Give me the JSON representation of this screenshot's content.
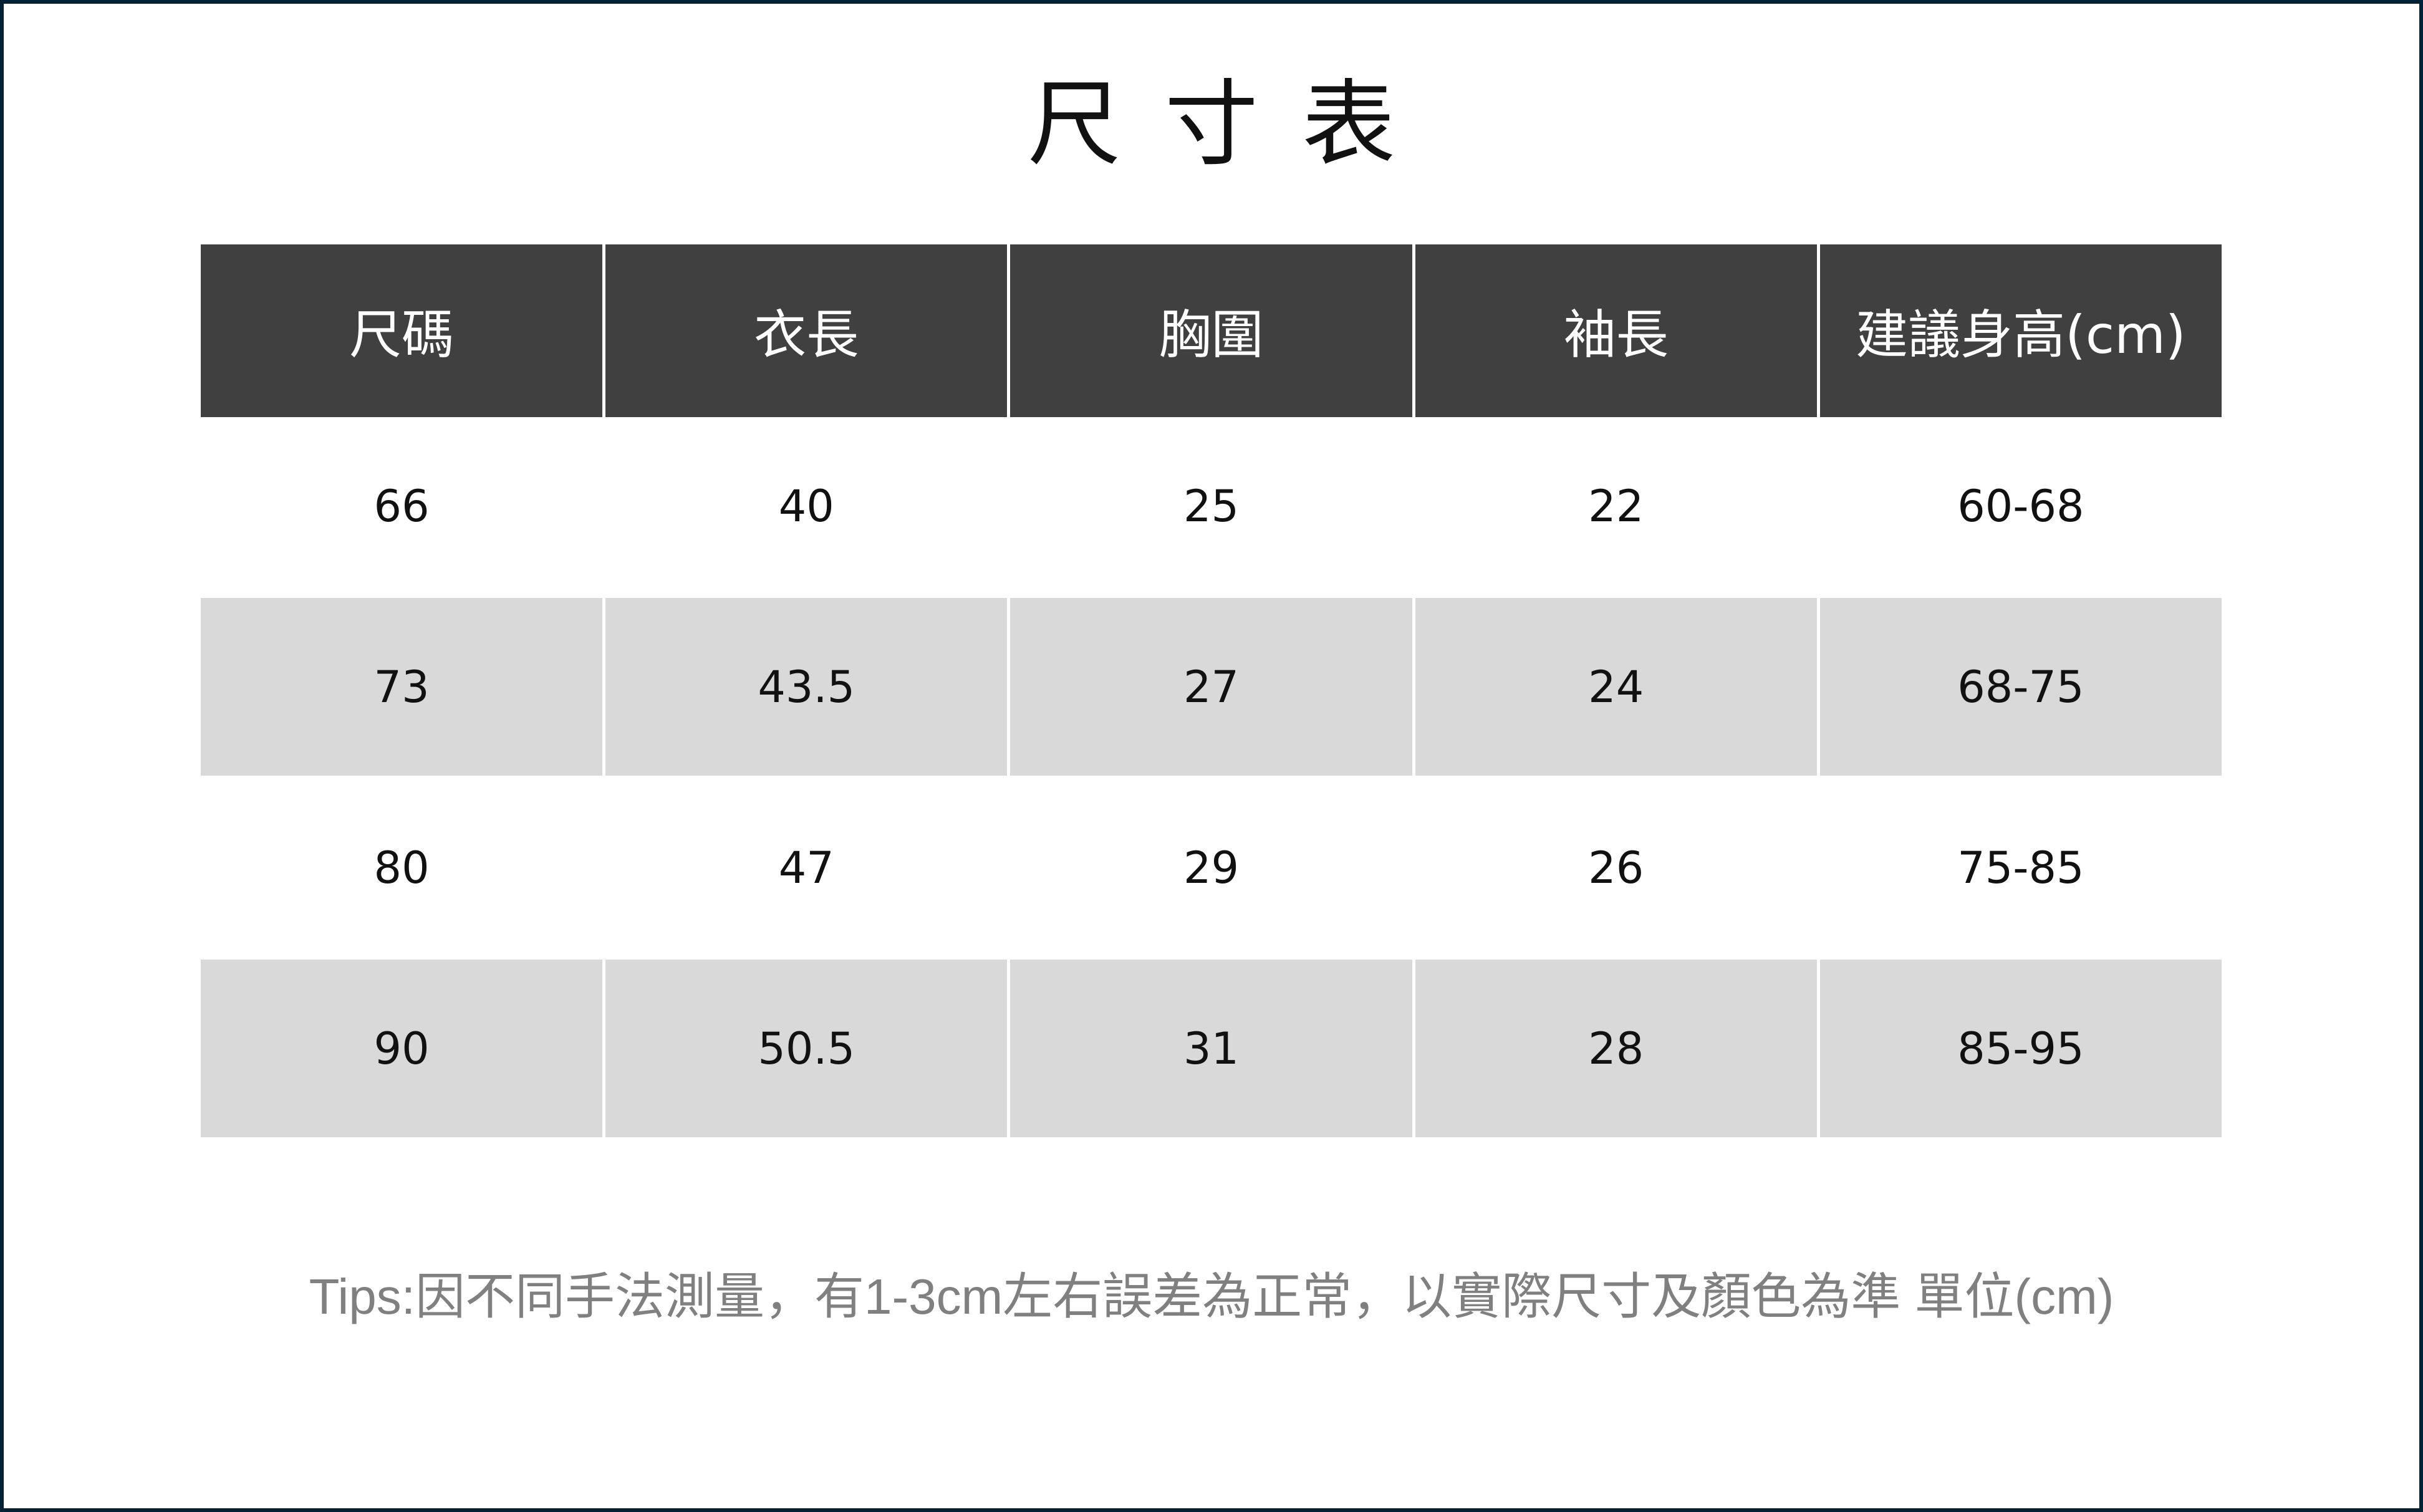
{
  "title": "尺寸表",
  "table": {
    "headers": [
      "尺碼",
      "衣長",
      "胸圍",
      "袖長",
      "建議身高(cm)"
    ],
    "rows": [
      [
        "66",
        "40",
        "25",
        "22",
        "60-68"
      ],
      [
        "73",
        "43.5",
        "27",
        "24",
        "68-75"
      ],
      [
        "80",
        "47",
        "29",
        "26",
        "75-85"
      ],
      [
        "90",
        "50.5",
        "31",
        "28",
        "85-95"
      ]
    ]
  },
  "tips": "Tips:因不同手法測量，有1-3cm左右誤差為正常，以實際尺寸及顏色為準 單位(cm)",
  "colors": {
    "border": "#042233",
    "header_bg": "#404040",
    "stripe_bg": "#d9d9d9",
    "tips_text": "#808080"
  }
}
